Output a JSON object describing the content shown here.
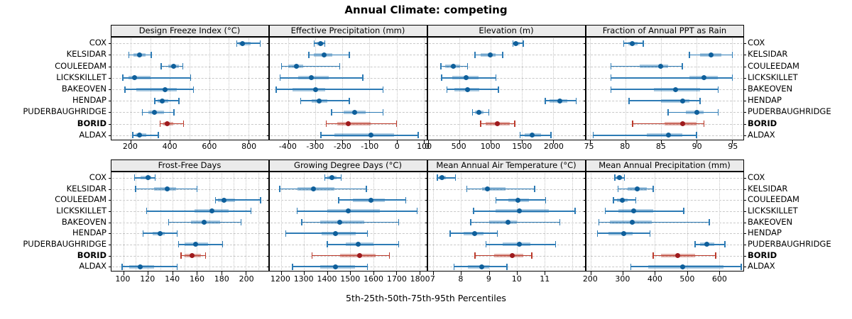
{
  "title": "Annual Climate: competing",
  "caption": "5th-25th-50th-75th-95th Percentiles",
  "colors": {
    "blue_line": "#2d7bb5",
    "blue_band_rgba": "rgba(45,123,181,0.40)",
    "blue_dot": "#0e5f9b",
    "red_line": "#bc3b2c",
    "red_band_rgba": "rgba(188,59,44,0.40)",
    "red_dot": "#9e1a1d",
    "strip_bg": "#ebebeb",
    "grid": "#c9c9c9"
  },
  "chart_data": {
    "type": "dot-whisker (5th-25th-50th-75th-95th percentile lattice dotplot)",
    "title": "Annual Climate: competing",
    "caption": "5th-25th-50th-75th-95th Percentiles",
    "stations": [
      "COX",
      "KELSIDAR",
      "COULEEDAM",
      "LICKSKILLET",
      "BAKEOVEN",
      "HENDAP",
      "PUDERBAUGHRIDGE",
      "BORID",
      "ALDAX"
    ],
    "bold_station": "BORID",
    "highlight_station": "BORID",
    "percentile_labels": [
      "5th",
      "25th",
      "50th",
      "75th",
      "95th"
    ],
    "panels": [
      {
        "id": "design-freeze-index",
        "title": "Design Freeze Index (°C)",
        "row": 0,
        "col": 0,
        "xlim": [
          100,
          900
        ],
        "ticks": [
          200,
          400,
          600,
          800
        ],
        "grid": [
          200,
          300,
          400,
          500,
          600,
          700,
          800
        ],
        "series": {
          "COX": [
            740,
            750,
            770,
            810,
            860
          ],
          "KELSIDAR": [
            190,
            215,
            245,
            275,
            305
          ],
          "COULEEDAM": [
            355,
            390,
            420,
            445,
            465
          ],
          "LICKSKILLET": [
            160,
            190,
            220,
            300,
            505
          ],
          "BAKEOVEN": [
            170,
            230,
            375,
            435,
            520
          ],
          "HENDAP": [
            323,
            337,
            362,
            392,
            445
          ],
          "PUDERBAUGHRIDGE": [
            260,
            290,
            320,
            370,
            420
          ],
          "BORID": [
            350,
            365,
            385,
            415,
            470
          ],
          "ALDAX": [
            210,
            225,
            245,
            280,
            340
          ]
        }
      },
      {
        "id": "effective-precipitation",
        "title": "Effective Precipitation (mm)",
        "row": 0,
        "col": 1,
        "xlim": [
          -470,
          110
        ],
        "ticks": [
          -400,
          -300,
          -200,
          -100,
          0,
          100
        ],
        "grid": [
          -400,
          -300,
          -200,
          -100,
          0,
          100
        ],
        "series": {
          "COX": [
            -305,
            -295,
            -280,
            -270,
            -265
          ],
          "KELSIDAR": [
            -325,
            -305,
            -268,
            -238,
            -175
          ],
          "COULEEDAM": [
            -425,
            -400,
            -370,
            -345,
            -210
          ],
          "LICKSKILLET": [
            -430,
            -365,
            -315,
            -250,
            -125
          ],
          "BAKEOVEN": [
            -445,
            -385,
            -300,
            -265,
            -50
          ],
          "HENDAP": [
            -355,
            -313,
            -287,
            -256,
            -175
          ],
          "PUDERBAUGHRIDGE": [
            -240,
            -195,
            -155,
            -115,
            -50
          ],
          "BORID": [
            -260,
            -220,
            -180,
            -95,
            0
          ],
          "ALDAX": [
            -280,
            -230,
            -95,
            -10,
            80
          ]
        }
      },
      {
        "id": "elevation",
        "title": "Elevation (m)",
        "row": 0,
        "col": 2,
        "xlim": [
          0,
          2500
        ],
        "ticks": [
          0,
          500,
          1000,
          1500,
          2000
        ],
        "grid": [
          500,
          1000,
          1500,
          2000
        ],
        "series": {
          "COX": [
            1360,
            1380,
            1405,
            1470,
            1520
          ],
          "KELSIDAR": [
            755,
            840,
            990,
            1085,
            1195
          ],
          "COULEEDAM": [
            210,
            275,
            410,
            515,
            635
          ],
          "LICKSKILLET": [
            220,
            385,
            615,
            810,
            1085
          ],
          "BAKEOVEN": [
            305,
            425,
            635,
            820,
            1125
          ],
          "HENDAP": [
            1870,
            1945,
            2100,
            2220,
            2365
          ],
          "PUDERBAUGHRIDGE": [
            710,
            755,
            810,
            890,
            975
          ],
          "BORID": [
            845,
            920,
            1110,
            1305,
            1385
          ],
          "ALDAX": [
            1470,
            1545,
            1660,
            1800,
            1965
          ]
        }
      },
      {
        "id": "fraction-of-annual-ppt-as-rain",
        "title": "Fraction of Annual PPT as Rain",
        "row": 0,
        "col": 3,
        "xlim": [
          74.5,
          96.5
        ],
        "ticks": [
          75,
          80,
          85,
          90,
          95
        ],
        "grid": [
          75,
          80,
          85,
          90,
          95
        ],
        "series": {
          "COX": [
            79.8,
            80.4,
            81,
            81.7,
            82.5
          ],
          "KELSIDAR": [
            89,
            90.5,
            92,
            93.5,
            95
          ],
          "COULEEDAM": [
            78,
            82,
            85,
            86,
            88
          ],
          "LICKSKILLET": [
            78,
            89,
            91,
            93,
            95
          ],
          "BAKEOVEN": [
            78,
            84,
            87,
            90.5,
            93
          ],
          "HENDAP": [
            80.5,
            85,
            88,
            89,
            90.5
          ],
          "PUDERBAUGHRIDGE": [
            86,
            88.5,
            90,
            91,
            93
          ],
          "BORID": [
            81,
            85.5,
            88,
            90,
            91
          ],
          "ALDAX": [
            75.5,
            83,
            86,
            88,
            90
          ]
        }
      },
      {
        "id": "frost-free-days",
        "title": "Frost-Free Days",
        "row": 1,
        "col": 0,
        "xlim": [
          90,
          218
        ],
        "ticks": [
          100,
          120,
          140,
          160,
          180,
          200
        ],
        "grid": [
          100,
          110,
          120,
          130,
          140,
          150,
          160,
          170,
          180,
          190,
          200,
          210
        ],
        "series": {
          "COX": [
            109,
            114,
            120,
            123,
            126
          ],
          "KELSIDAR": [
            110,
            125,
            136,
            143,
            160
          ],
          "COULEEDAM": [
            175,
            177,
            182,
            191,
            212
          ],
          "LICKSKILLET": [
            119,
            158,
            172,
            186,
            204
          ],
          "BAKEOVEN": [
            137,
            155,
            166,
            179,
            196
          ],
          "HENDAP": [
            116,
            124,
            130,
            134,
            144
          ],
          "PUDERBAUGHRIDGE": [
            145,
            150,
            159,
            169,
            181
          ],
          "BORID": [
            147,
            150,
            156,
            163,
            167
          ],
          "ALDAX": [
            99,
            105,
            114,
            125,
            144
          ]
        }
      },
      {
        "id": "growing-degree-days",
        "title": "Growing Degree Days (°C)",
        "row": 1,
        "col": 1,
        "xlim": [
          1150,
          1830
        ],
        "ticks": [
          1200,
          1300,
          1400,
          1500,
          1600,
          1700,
          1800
        ],
        "grid": [
          1200,
          1300,
          1400,
          1500,
          1600,
          1700,
          1800
        ],
        "series": {
          "COX": [
            1390,
            1400,
            1420,
            1440,
            1460
          ],
          "KELSIDAR": [
            1195,
            1270,
            1340,
            1430,
            1570
          ],
          "COULEEDAM": [
            1450,
            1510,
            1590,
            1650,
            1740
          ],
          "LICKSKILLET": [
            1270,
            1400,
            1490,
            1630,
            1790
          ],
          "BAKEOVEN": [
            1290,
            1370,
            1455,
            1560,
            1710
          ],
          "HENDAP": [
            1220,
            1375,
            1435,
            1525,
            1575
          ],
          "PUDERBAUGHRIDGE": [
            1400,
            1480,
            1535,
            1600,
            1710
          ],
          "BORID": [
            1335,
            1455,
            1540,
            1610,
            1670
          ],
          "ALDAX": [
            1250,
            1370,
            1435,
            1520,
            1575
          ]
        }
      },
      {
        "id": "mean-annual-air-temperature",
        "title": "Mean Annual Air Temperature (°C)",
        "row": 1,
        "col": 2,
        "xlim": [
          6.8,
          12.45
        ],
        "ticks": [
          7,
          8,
          9,
          10,
          11
        ],
        "grid": [
          7,
          8,
          9,
          10,
          11,
          12
        ],
        "series": {
          "COX": [
            7.15,
            7.2,
            7.3,
            7.45,
            7.8
          ],
          "KELSIDAR": [
            8.2,
            8.75,
            8.95,
            9.6,
            10.65
          ],
          "COULEEDAM": [
            9.25,
            9.7,
            10.05,
            10.45,
            11.05
          ],
          "LICKSKILLET": [
            8.45,
            9.25,
            10.1,
            11.15,
            12.1
          ],
          "BAKEOVEN": [
            8.35,
            9,
            9.7,
            10,
            11.55
          ],
          "HENDAP": [
            7.6,
            8.1,
            8.5,
            8.8,
            9.3
          ],
          "PUDERBAUGHRIDGE": [
            8.9,
            9.5,
            10.1,
            10.5,
            11.4
          ],
          "BORID": [
            8.5,
            9.2,
            9.85,
            10.25,
            10.55
          ],
          "ALDAX": [
            7.75,
            8.25,
            8.75,
            9,
            9.65
          ]
        }
      },
      {
        "id": "mean-annual-precipitation",
        "title": "Mean Annual Precipitation (mm)",
        "row": 1,
        "col": 3,
        "xlim": [
          185,
          675
        ],
        "ticks": [
          200,
          300,
          400,
          500,
          600
        ],
        "grid": [
          200,
          300,
          400,
          500,
          600
        ],
        "series": {
          "COX": [
            275,
            280,
            290,
            297,
            305
          ],
          "KELSIDAR": [
            285,
            315,
            345,
            375,
            395
          ],
          "COULEEDAM": [
            270,
            282,
            298,
            315,
            340
          ],
          "LICKSKILLET": [
            245,
            285,
            333,
            395,
            490
          ],
          "BAKEOVEN": [
            225,
            260,
            330,
            390,
            570
          ],
          "HENDAP": [
            220,
            255,
            303,
            330,
            385
          ],
          "PUDERBAUGHRIDGE": [
            525,
            540,
            562,
            585,
            618
          ],
          "BORID": [
            395,
            420,
            470,
            525,
            590
          ],
          "ALDAX": [
            325,
            380,
            487,
            615,
            670
          ]
        }
      }
    ]
  }
}
